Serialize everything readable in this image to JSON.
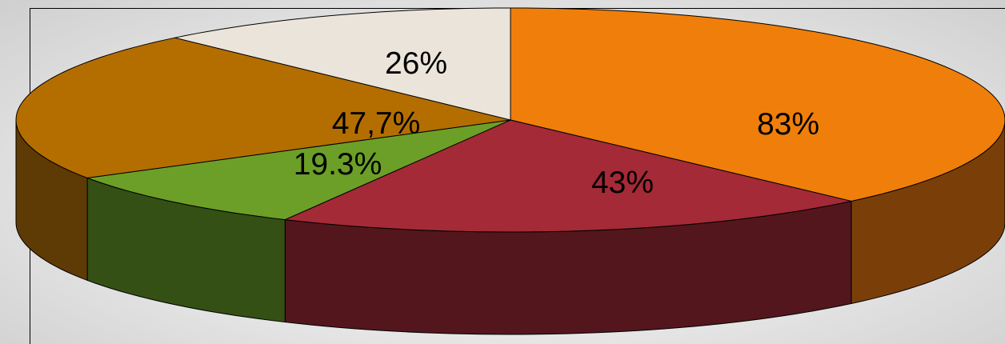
{
  "chart_data": {
    "type": "pie",
    "style": "3d",
    "slices": [
      {
        "label": "83%",
        "value": 83,
        "color": "#ef7f0a",
        "side": "#7a3f08"
      },
      {
        "label": "43%",
        "value": 43,
        "color": "#a32a36",
        "side": "#54161d"
      },
      {
        "label": "19.3%",
        "value": 19.3,
        "color": "#6c9f27",
        "side": "#345014"
      },
      {
        "label": "47,7%",
        "value": 47.7,
        "color": "#b46e00",
        "side": "#5e3a04"
      },
      {
        "label": "26%",
        "value": 26,
        "color": "#ebe4da",
        "side": "#8f887c"
      }
    ]
  }
}
